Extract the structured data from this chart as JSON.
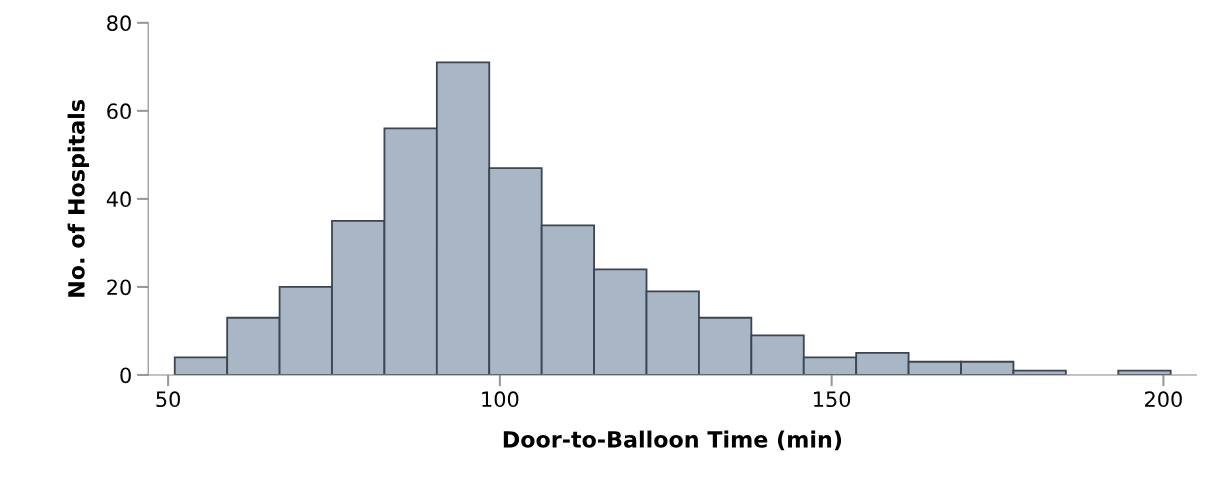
{
  "chart_data": {
    "type": "histogram",
    "xlabel": "Door-to-Balloon Time (min)",
    "ylabel": "No. of Hospitals",
    "bins": [
      51,
      58.9,
      66.8,
      74.7,
      82.6,
      90.5,
      98.4,
      106.3,
      114.2,
      122.1,
      130,
      137.9,
      145.8,
      153.7,
      161.6,
      169.5,
      177.4,
      185.3,
      193.2,
      201.1
    ],
    "values": [
      4,
      13,
      20,
      35,
      56,
      71,
      47,
      34,
      24,
      19,
      13,
      9,
      4,
      5,
      3,
      3,
      1,
      0,
      1
    ],
    "color": "#a8b6c5",
    "xlim": [
      47,
      205
    ],
    "xticks": [
      50,
      100,
      150,
      200
    ],
    "ylim": [
      0,
      80
    ],
    "yticks": [
      0,
      20,
      40,
      60,
      80
    ],
    "grid": false,
    "legend": false
  }
}
